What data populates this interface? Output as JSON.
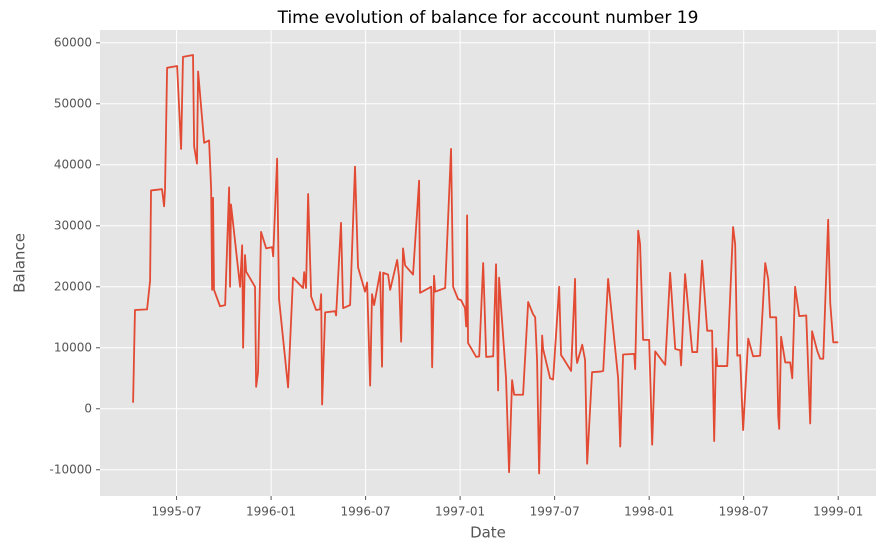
{
  "chart_data": {
    "type": "line",
    "title": "Time evolution of balance for account number 19",
    "x_label": "Date",
    "y_label": "Balance",
    "grid": true,
    "background": "#e5e5e5",
    "xlim": [
      1995.095,
      1999.2
    ],
    "ylim": [
      -14300,
      62100
    ],
    "xticks": [
      {
        "value": 1995.5,
        "label": "1995-07"
      },
      {
        "value": 1996.0,
        "label": "1996-01"
      },
      {
        "value": 1996.5,
        "label": "1996-07"
      },
      {
        "value": 1997.0,
        "label": "1997-01"
      },
      {
        "value": 1997.5,
        "label": "1997-07"
      },
      {
        "value": 1998.0,
        "label": "1998-01"
      },
      {
        "value": 1998.5,
        "label": "1998-07"
      },
      {
        "value": 1999.0,
        "label": "1999-01"
      }
    ],
    "yticks": [
      -10000,
      0,
      10000,
      20000,
      30000,
      40000,
      50000,
      60000
    ],
    "x": [
      1995.27,
      1995.28,
      1995.344,
      1995.36,
      1995.365,
      1995.423,
      1995.434,
      1995.439,
      1995.45,
      1995.503,
      1995.524,
      1995.534,
      1995.587,
      1995.593,
      1995.608,
      1995.614,
      1995.646,
      1995.672,
      1995.683,
      1995.688,
      1995.693,
      1995.698,
      1995.73,
      1995.757,
      1995.778,
      1995.783,
      1995.788,
      1995.836,
      1995.847,
      1995.852,
      1995.862,
      1995.868,
      1995.915,
      1995.921,
      1995.931,
      1995.947,
      1995.974,
      1996.005,
      1996.011,
      1996.032,
      1996.042,
      1996.09,
      1996.116,
      1996.169,
      1996.175,
      1996.185,
      1996.196,
      1996.212,
      1996.238,
      1996.259,
      1996.265,
      1996.27,
      1996.286,
      1996.339,
      1996.344,
      1996.37,
      1996.381,
      1996.418,
      1996.444,
      1996.46,
      1996.497,
      1996.508,
      1996.524,
      1996.534,
      1996.545,
      1996.577,
      1996.587,
      1996.593,
      1996.619,
      1996.63,
      1996.667,
      1996.677,
      1996.688,
      1996.698,
      1996.709,
      1996.751,
      1996.783,
      1996.788,
      1996.847,
      1996.852,
      1996.862,
      1996.868,
      1996.921,
      1996.952,
      1996.963,
      1996.989,
      1997.005,
      1997.026,
      1997.032,
      1997.037,
      1997.042,
      1997.085,
      1997.101,
      1997.122,
      1997.138,
      1997.175,
      1997.19,
      1997.201,
      1997.206,
      1997.243,
      1997.259,
      1997.275,
      1997.286,
      1997.333,
      1997.36,
      1997.386,
      1997.397,
      1997.407,
      1997.418,
      1997.434,
      1997.439,
      1997.476,
      1997.492,
      1997.524,
      1997.534,
      1997.545,
      1997.587,
      1997.608,
      1997.614,
      1997.619,
      1997.646,
      1997.661,
      1997.672,
      1997.698,
      1997.741,
      1997.757,
      1997.783,
      1997.81,
      1997.836,
      1997.847,
      1997.862,
      1997.921,
      1997.926,
      1997.942,
      1997.952,
      1997.968,
      1998.0,
      1998.016,
      1998.032,
      1998.085,
      1998.111,
      1998.138,
      1998.164,
      1998.169,
      1998.19,
      1998.228,
      1998.254,
      1998.28,
      1998.307,
      1998.333,
      1998.344,
      1998.354,
      1998.36,
      1998.413,
      1998.444,
      1998.455,
      1998.466,
      1998.481,
      1998.497,
      1998.524,
      1998.55,
      1998.587,
      1998.614,
      1998.63,
      1998.64,
      1998.672,
      1998.683,
      1998.688,
      1998.698,
      1998.72,
      1998.746,
      1998.757,
      1998.772,
      1998.794,
      1998.831,
      1998.852,
      1998.862,
      1998.889,
      1998.905,
      1998.921,
      1998.947,
      1998.958,
      1998.974,
      1999.0
    ],
    "series": [
      {
        "color": "#e24a33",
        "values": [
          1000,
          16200,
          16300,
          21000,
          35800,
          36000,
          33200,
          36000,
          55900,
          56200,
          42600,
          57700,
          58000,
          43000,
          40200,
          55300,
          43600,
          44000,
          36000,
          19500,
          34600,
          19500,
          16800,
          17000,
          36300,
          20000,
          33500,
          20000,
          26800,
          10000,
          25200,
          22500,
          20000,
          3600,
          6000,
          29000,
          26300,
          26500,
          25000,
          41000,
          18000,
          3500,
          21500,
          19800,
          22400,
          19800,
          35200,
          18400,
          16200,
          16300,
          18800,
          700,
          15800,
          16000,
          15300,
          30500,
          16500,
          17000,
          39700,
          23200,
          19200,
          20700,
          3800,
          18800,
          17000,
          22400,
          6900,
          22300,
          22000,
          19500,
          24400,
          21500,
          11000,
          26300,
          23500,
          22000,
          37400,
          19000,
          20000,
          6800,
          21800,
          19200,
          19800,
          42600,
          20000,
          18000,
          17800,
          16500,
          13500,
          31700,
          10800,
          8500,
          8600,
          23900,
          8500,
          8600,
          23700,
          3000,
          21500,
          5000,
          -10400,
          4700,
          2300,
          2300,
          17500,
          15500,
          15000,
          8000,
          -10600,
          12000,
          9800,
          5000,
          4800,
          20000,
          8800,
          8300,
          6200,
          21300,
          9000,
          7500,
          10500,
          8000,
          -9000,
          6000,
          6100,
          6200,
          21300,
          13000,
          5000,
          -6200,
          8900,
          9000,
          6500,
          29200,
          27000,
          11300,
          11300,
          -5900,
          9400,
          7200,
          22300,
          9800,
          9600,
          7100,
          22100,
          9300,
          9300,
          24300,
          12800,
          12800,
          -5300,
          9900,
          7000,
          7000,
          29800,
          27000,
          8700,
          8800,
          -3500,
          11500,
          8600,
          8700,
          23900,
          21200,
          15000,
          15000,
          -1300,
          -3300,
          11800,
          7600,
          7600,
          5000,
          20000,
          15200,
          15300,
          -2400,
          12700,
          9500,
          8200,
          8200,
          31000,
          17300,
          10900,
          10900
        ]
      }
    ]
  }
}
